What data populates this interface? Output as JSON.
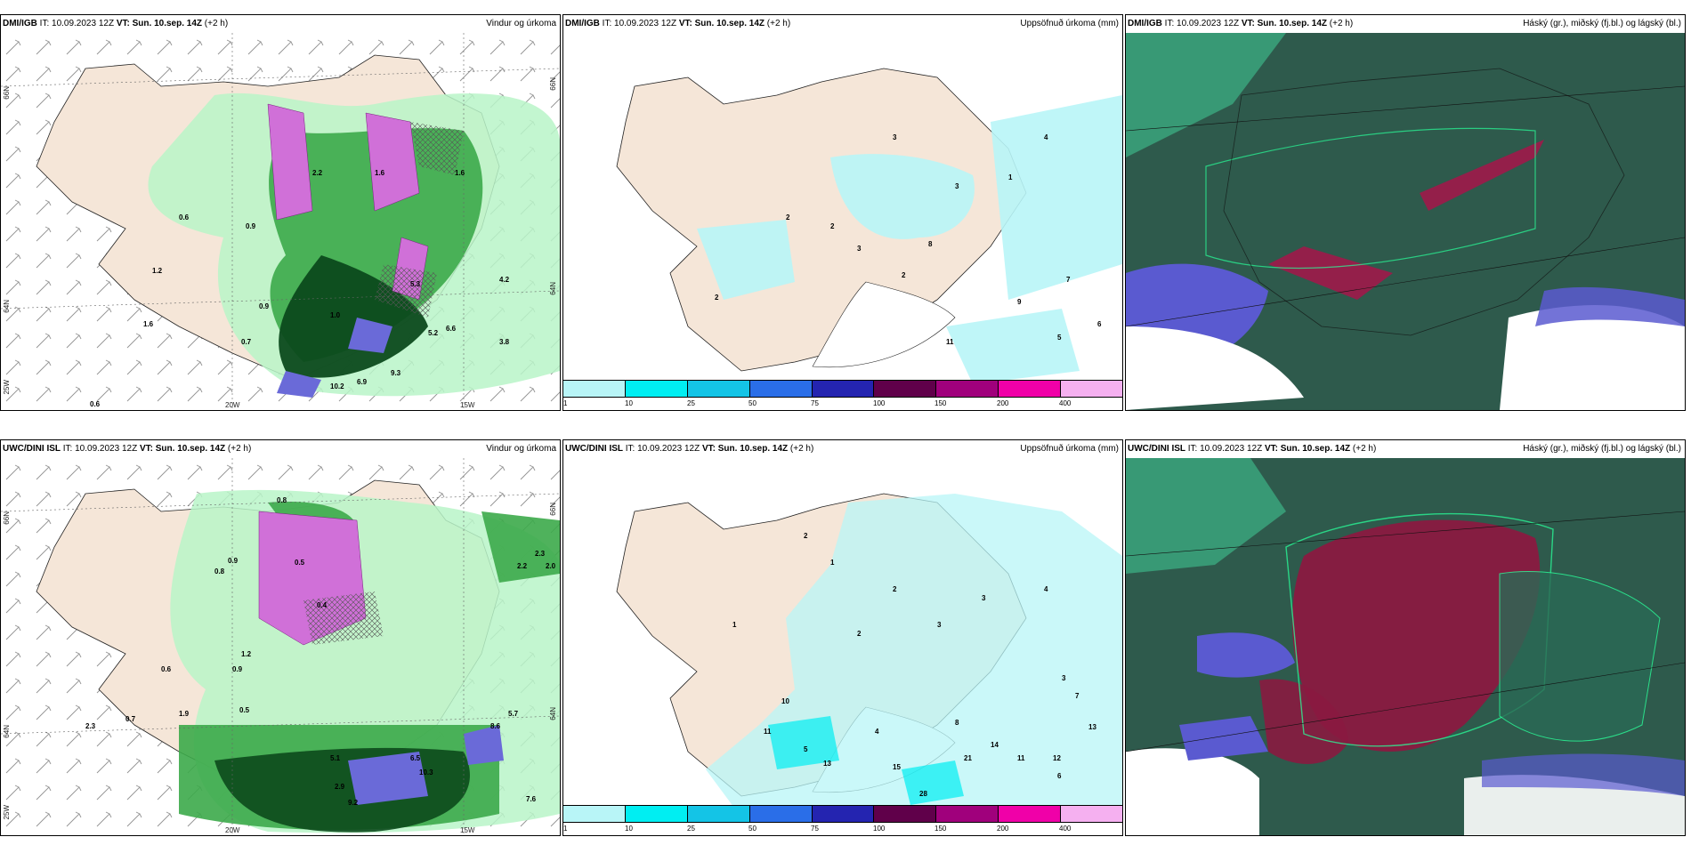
{
  "panels": {
    "top_left": {
      "source": "DMI/IGB",
      "it": "IT: 10.09.2023 12Z",
      "vt": "VT: Sun. 10.sep. 14Z",
      "lead": "(+2 h)",
      "title": "Vindur og úrkoma"
    },
    "top_center": {
      "source": "DMI/IGB",
      "it": "IT: 10.09.2023 12Z",
      "vt": "VT: Sun. 10.sep. 14Z",
      "lead": "(+2 h)",
      "title": "Uppsöfnuð úrkoma (mm)"
    },
    "top_right": {
      "source": "DMI/IGB",
      "it": "IT: 10.09.2023 12Z",
      "vt": "VT: Sun. 10.sep. 14Z",
      "lead": "(+2 h)",
      "title": "Háský (gr.), miðský (fj.bl.) og lágský (bl.)"
    },
    "bottom_left": {
      "source": "UWC/DINI ISL",
      "it": "IT: 10.09.2023 12Z",
      "vt": "VT: Sun. 10.sep. 14Z",
      "lead": "(+2 h)",
      "title": "Vindur og úrkoma"
    },
    "bottom_center": {
      "source": "UWC/DINI ISL",
      "it": "IT: 10.09.2023 12Z",
      "vt": "VT: Sun. 10.sep. 14Z",
      "lead": "(+2 h)",
      "title": "Uppsöfnuð úrkoma (mm)"
    },
    "bottom_right": {
      "source": "UWC/DINI ISL",
      "it": "IT: 10.09.2023 12Z",
      "vt": "VT: Sun. 10.sep. 14Z",
      "lead": "(+2 h)",
      "title": "Háský (gr.), miðský (fj.bl.) og lágský (bl.)"
    }
  },
  "grid_labels": {
    "lat66": "66N",
    "lat64": "64N",
    "lon20": "20W",
    "lon15": "15W",
    "corner": "25W",
    "lat66b": "66N",
    "lat64b": "64N"
  },
  "legend": {
    "ticks": [
      "1",
      "10",
      "25",
      "50",
      "75",
      "100",
      "150",
      "200",
      "400"
    ],
    "colors": [
      "#b8f5f7",
      "#00eef2",
      "#14c4e6",
      "#2a6ee8",
      "#2424b0",
      "#60004a",
      "#a0007c",
      "#f000a8",
      "#f5b0f0"
    ]
  },
  "colors": {
    "land": "#f5e6d8",
    "precip_light": "#b8f5c8",
    "precip_mid": "#3caa4a",
    "precip_dark": "#0c4a1c",
    "precip_purple": "#d070d8",
    "high_cloud": "#2e5a4c",
    "mid_cloud": "#a0184a",
    "low_cloud": "#5a5ad0"
  },
  "values": {
    "tl": [
      "2.2",
      "1.6",
      "0.9",
      "0.6",
      "1.2",
      "0.7",
      "1.0",
      "5.3",
      "4.2",
      "6.6",
      "9.3",
      "6.9",
      "10.2",
      "0.6",
      "1.6",
      "3.8",
      "0.9",
      "5.2",
      "1.6"
    ],
    "tc": [
      "3",
      "4",
      "3",
      "2",
      "2",
      "3",
      "2",
      "2",
      "7",
      "9",
      "5",
      "11",
      "6",
      "1",
      "8"
    ],
    "bl": [
      "0.9",
      "0.8",
      "0.6",
      "0.9",
      "1.2",
      "2.3",
      "0.7",
      "1.9",
      "0.5",
      "2.2",
      "2.0",
      "2.3",
      "5.7",
      "6.5",
      "10.3",
      "8.6",
      "9.2",
      "7.6",
      "2.9",
      "5.1",
      "0.8",
      "0.5",
      "0.4"
    ],
    "bc": [
      "2",
      "1",
      "2",
      "3",
      "4",
      "3",
      "2",
      "1",
      "10",
      "11",
      "13",
      "15",
      "21",
      "28",
      "14",
      "12",
      "11",
      "6",
      "3",
      "7",
      "13",
      "8",
      "4",
      "5"
    ]
  }
}
